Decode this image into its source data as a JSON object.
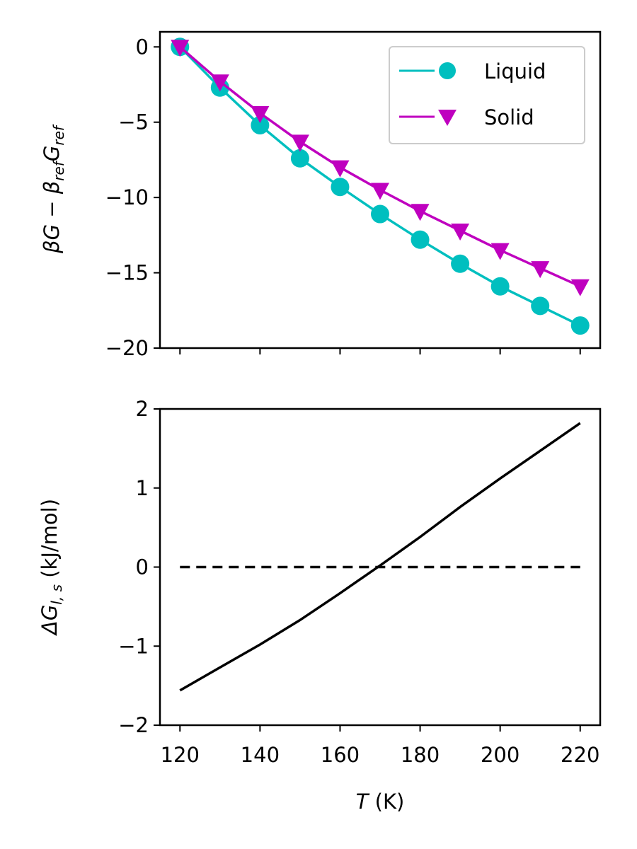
{
  "chart_data": [
    {
      "type": "line",
      "title": "",
      "xlabel": "",
      "ylabel": "βG − β_ref G_ref",
      "ylabel_parts": {
        "a": "βG − β",
        "sub1": "ref",
        "b": "G",
        "sub2": "ref"
      },
      "xlim": [
        115,
        225
      ],
      "ylim": [
        -20,
        1
      ],
      "yticks": [
        0,
        -5,
        -10,
        -15,
        -20
      ],
      "ytick_labels": [
        "0",
        "−5",
        "−10",
        "−15",
        "−20"
      ],
      "xticks": [
        120,
        140,
        160,
        180,
        200,
        220
      ],
      "x_tick_labels_shown": false,
      "grid": false,
      "legend_position": "top-right",
      "x": [
        120,
        130,
        140,
        150,
        160,
        170,
        180,
        190,
        200,
        210,
        220
      ],
      "series": [
        {
          "name": "Liquid",
          "color": "#00bfbf",
          "marker": "circle",
          "values": [
            0,
            -2.7,
            -5.2,
            -7.4,
            -9.3,
            -11.1,
            -12.8,
            -14.4,
            -15.9,
            -17.2,
            -18.5
          ]
        },
        {
          "name": "Solid",
          "color": "#bf00bf",
          "marker": "triangle-down",
          "values": [
            0,
            -2.3,
            -4.4,
            -6.3,
            -8.0,
            -9.5,
            -10.9,
            -12.2,
            -13.5,
            -14.7,
            -15.9
          ]
        }
      ]
    },
    {
      "type": "line",
      "title": "",
      "xlabel": "T (K)",
      "xlabel_parts": {
        "var": "T",
        "unit": " (K)"
      },
      "ylabel": "ΔG_l,s (kJ/mol)",
      "ylabel_parts": {
        "a": "ΔG",
        "sub": "l, s",
        "b": " (kJ/mol)"
      },
      "xlim": [
        115,
        225
      ],
      "ylim": [
        -2,
        2
      ],
      "xticks": [
        120,
        140,
        160,
        180,
        200,
        220
      ],
      "xtick_labels": [
        "120",
        "140",
        "160",
        "180",
        "200",
        "220"
      ],
      "yticks": [
        2,
        1,
        0,
        -1,
        -2
      ],
      "ytick_labels": [
        "2",
        "1",
        "0",
        "−1",
        "−2"
      ],
      "grid": false,
      "series": [
        {
          "color": "#000000",
          "style": "solid",
          "x": [
            120,
            130,
            140,
            150,
            160,
            170,
            180,
            190,
            200,
            210,
            220
          ],
          "values": [
            -1.56,
            -1.27,
            -0.98,
            -0.67,
            -0.33,
            0.02,
            0.38,
            0.76,
            1.12,
            1.47,
            1.82
          ]
        },
        {
          "color": "#000000",
          "style": "dashed",
          "x": [
            120,
            220
          ],
          "values": [
            0,
            0
          ]
        }
      ]
    }
  ]
}
